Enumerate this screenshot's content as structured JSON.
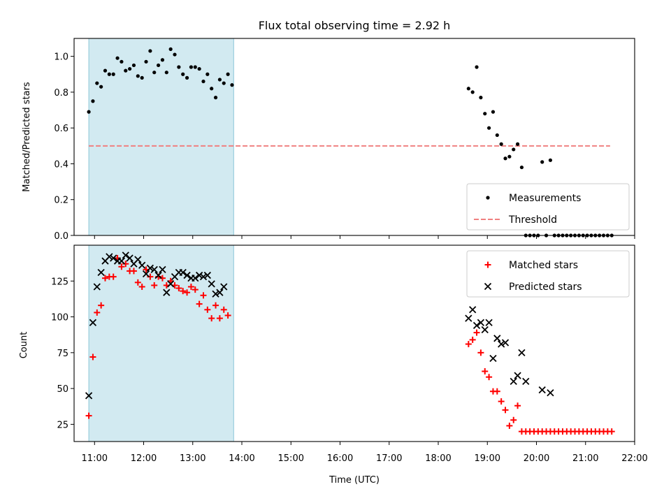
{
  "chart_data": [
    {
      "type": "scatter",
      "title": "Flux total observing time = 2.92 h",
      "xlabel": "",
      "ylabel": "Matched/Predicted stars",
      "xlim": [
        "10:35",
        "22:00"
      ],
      "ylim": [
        0,
        1.1
      ],
      "y_ticks": [
        "0.0",
        "0.2",
        "0.4",
        "0.6",
        "0.8",
        "1.0"
      ],
      "x_ticks_labels_shown": false,
      "shaded_region": {
        "x_start": "10:53",
        "x_end": "13:50",
        "color": "#add8e6"
      },
      "threshold": {
        "value": 0.5,
        "x_start": "10:53",
        "x_end": "21:30",
        "color": "#f08080",
        "style": "dashed"
      },
      "legend": {
        "position": "lower right",
        "entries": [
          "Measurements",
          "Threshold"
        ]
      },
      "series": [
        {
          "name": "Measurements",
          "marker": "dot",
          "color": "#000000",
          "points": [
            [
              "10:53",
              0.69
            ],
            [
              "10:58",
              0.75
            ],
            [
              "11:03",
              0.85
            ],
            [
              "11:08",
              0.83
            ],
            [
              "11:13",
              0.92
            ],
            [
              "11:18",
              0.9
            ],
            [
              "11:23",
              0.9
            ],
            [
              "11:28",
              0.99
            ],
            [
              "11:33",
              0.97
            ],
            [
              "11:38",
              0.92
            ],
            [
              "11:43",
              0.93
            ],
            [
              "11:48",
              0.95
            ],
            [
              "11:53",
              0.89
            ],
            [
              "11:58",
              0.88
            ],
            [
              "12:03",
              0.97
            ],
            [
              "12:08",
              1.03
            ],
            [
              "12:13",
              0.91
            ],
            [
              "12:18",
              0.95
            ],
            [
              "12:23",
              0.98
            ],
            [
              "12:28",
              0.91
            ],
            [
              "12:33",
              1.04
            ],
            [
              "12:38",
              1.01
            ],
            [
              "12:43",
              0.94
            ],
            [
              "12:48",
              0.9
            ],
            [
              "12:53",
              0.88
            ],
            [
              "12:58",
              0.94
            ],
            [
              "13:03",
              0.94
            ],
            [
              "13:08",
              0.93
            ],
            [
              "13:13",
              0.86
            ],
            [
              "13:18",
              0.9
            ],
            [
              "13:23",
              0.82
            ],
            [
              "13:28",
              0.77
            ],
            [
              "13:33",
              0.87
            ],
            [
              "13:38",
              0.85
            ],
            [
              "13:43",
              0.9
            ],
            [
              "13:48",
              0.84
            ],
            [
              "18:37",
              0.82
            ],
            [
              "18:42",
              0.8
            ],
            [
              "18:47",
              0.94
            ],
            [
              "18:52",
              0.77
            ],
            [
              "18:57",
              0.68
            ],
            [
              "19:02",
              0.6
            ],
            [
              "19:07",
              0.69
            ],
            [
              "19:12",
              0.56
            ],
            [
              "19:17",
              0.51
            ],
            [
              "19:22",
              0.43
            ],
            [
              "19:27",
              0.44
            ],
            [
              "19:32",
              0.48
            ],
            [
              "19:37",
              0.51
            ],
            [
              "19:42",
              0.38
            ],
            [
              "20:07",
              0.41
            ],
            [
              "20:17",
              0.42
            ],
            [
              "19:47",
              0.0
            ],
            [
              "19:52",
              0.0
            ],
            [
              "19:57",
              0.0
            ],
            [
              "20:02",
              0.0
            ],
            [
              "20:12",
              0.0
            ],
            [
              "20:22",
              0.0
            ],
            [
              "20:27",
              0.0
            ],
            [
              "20:32",
              0.0
            ],
            [
              "20:37",
              0.0
            ],
            [
              "20:42",
              0.0
            ],
            [
              "20:47",
              0.0
            ],
            [
              "20:52",
              0.0
            ],
            [
              "20:57",
              0.0
            ],
            [
              "21:02",
              0.0
            ],
            [
              "21:07",
              0.0
            ],
            [
              "21:12",
              0.0
            ],
            [
              "21:17",
              0.0
            ],
            [
              "21:22",
              0.0
            ],
            [
              "21:27",
              0.0
            ],
            [
              "21:32",
              0.0
            ]
          ]
        }
      ]
    },
    {
      "type": "scatter",
      "title": "",
      "xlabel": "Time (UTC)",
      "ylabel": "Count",
      "xlim": [
        "10:35",
        "22:00"
      ],
      "ylim": [
        13,
        150
      ],
      "y_ticks": [
        "25",
        "50",
        "75",
        "100",
        "125"
      ],
      "x_ticks": [
        "11:00",
        "12:00",
        "13:00",
        "14:00",
        "15:00",
        "16:00",
        "17:00",
        "18:00",
        "19:00",
        "20:00",
        "21:00",
        "22:00"
      ],
      "shaded_region": {
        "x_start": "10:53",
        "x_end": "13:50",
        "color": "#add8e6"
      },
      "legend": {
        "position": "upper right",
        "entries": [
          "Matched stars",
          "Predicted stars"
        ]
      },
      "series": [
        {
          "name": "Matched stars",
          "marker": "plus",
          "color": "#ff0000",
          "points": [
            [
              "10:53",
              31
            ],
            [
              "10:58",
              72
            ],
            [
              "11:03",
              103
            ],
            [
              "11:08",
              108
            ],
            [
              "11:13",
              127
            ],
            [
              "11:18",
              128
            ],
            [
              "11:23",
              128
            ],
            [
              "11:28",
              141
            ],
            [
              "11:33",
              135
            ],
            [
              "11:38",
              137
            ],
            [
              "11:43",
              132
            ],
            [
              "11:48",
              132
            ],
            [
              "11:53",
              124
            ],
            [
              "11:58",
              121
            ],
            [
              "12:03",
              133
            ],
            [
              "12:08",
              128
            ],
            [
              "12:13",
              122
            ],
            [
              "12:18",
              128
            ],
            [
              "12:23",
              127
            ],
            [
              "12:28",
              122
            ],
            [
              "12:33",
              125
            ],
            [
              "12:38",
              122
            ],
            [
              "12:43",
              120
            ],
            [
              "12:48",
              118
            ],
            [
              "12:53",
              117
            ],
            [
              "12:58",
              121
            ],
            [
              "13:03",
              119
            ],
            [
              "13:08",
              109
            ],
            [
              "13:13",
              115
            ],
            [
              "13:18",
              105
            ],
            [
              "13:23",
              99
            ],
            [
              "13:28",
              108
            ],
            [
              "13:33",
              99
            ],
            [
              "13:38",
              105
            ],
            [
              "13:43",
              101
            ],
            [
              "18:37",
              81
            ],
            [
              "18:42",
              84
            ],
            [
              "18:47",
              89
            ],
            [
              "18:52",
              75
            ],
            [
              "18:57",
              62
            ],
            [
              "19:02",
              58
            ],
            [
              "19:07",
              48
            ],
            [
              "19:12",
              48
            ],
            [
              "19:17",
              41
            ],
            [
              "19:22",
              35
            ],
            [
              "19:27",
              24
            ],
            [
              "19:32",
              28
            ],
            [
              "19:37",
              38
            ],
            [
              "19:42",
              20
            ],
            [
              "19:47",
              20
            ],
            [
              "19:52",
              20
            ],
            [
              "19:57",
              20
            ],
            [
              "20:02",
              20
            ],
            [
              "20:07",
              20
            ],
            [
              "20:12",
              20
            ],
            [
              "20:17",
              20
            ],
            [
              "20:22",
              20
            ],
            [
              "20:27",
              20
            ],
            [
              "20:32",
              20
            ],
            [
              "20:37",
              20
            ],
            [
              "20:42",
              20
            ],
            [
              "20:47",
              20
            ],
            [
              "20:52",
              20
            ],
            [
              "20:57",
              20
            ],
            [
              "21:02",
              20
            ],
            [
              "21:07",
              20
            ],
            [
              "21:12",
              20
            ],
            [
              "21:17",
              20
            ],
            [
              "21:22",
              20
            ],
            [
              "21:27",
              20
            ],
            [
              "21:32",
              20
            ]
          ]
        },
        {
          "name": "Predicted stars",
          "marker": "x",
          "color": "#000000",
          "points": [
            [
              "10:53",
              45
            ],
            [
              "10:58",
              96
            ],
            [
              "11:03",
              121
            ],
            [
              "11:08",
              131
            ],
            [
              "11:13",
              139
            ],
            [
              "11:18",
              142
            ],
            [
              "11:23",
              141
            ],
            [
              "11:28",
              139
            ],
            [
              "11:33",
              139
            ],
            [
              "11:38",
              143
            ],
            [
              "11:43",
              141
            ],
            [
              "11:48",
              137
            ],
            [
              "11:53",
              140
            ],
            [
              "11:58",
              136
            ],
            [
              "12:03",
              130
            ],
            [
              "12:08",
              134
            ],
            [
              "12:13",
              133
            ],
            [
              "12:18",
              129
            ],
            [
              "12:23",
              133
            ],
            [
              "12:28",
              117
            ],
            [
              "12:33",
              123
            ],
            [
              "12:38",
              128
            ],
            [
              "12:43",
              131
            ],
            [
              "12:48",
              131
            ],
            [
              "12:53",
              129
            ],
            [
              "12:58",
              127
            ],
            [
              "13:03",
              127
            ],
            [
              "13:08",
              129
            ],
            [
              "13:13",
              128
            ],
            [
              "13:18",
              129
            ],
            [
              "13:23",
              123
            ],
            [
              "13:28",
              116
            ],
            [
              "13:33",
              117
            ],
            [
              "13:38",
              121
            ],
            [
              "18:37",
              99
            ],
            [
              "18:42",
              105
            ],
            [
              "18:47",
              94
            ],
            [
              "18:52",
              96
            ],
            [
              "18:57",
              91
            ],
            [
              "19:02",
              96
            ],
            [
              "19:07",
              71
            ],
            [
              "19:12",
              85
            ],
            [
              "19:17",
              81
            ],
            [
              "19:22",
              82
            ],
            [
              "19:32",
              55
            ],
            [
              "19:37",
              59
            ],
            [
              "19:42",
              75
            ],
            [
              "19:47",
              55
            ],
            [
              "20:07",
              49
            ],
            [
              "20:17",
              47
            ]
          ]
        }
      ]
    }
  ]
}
